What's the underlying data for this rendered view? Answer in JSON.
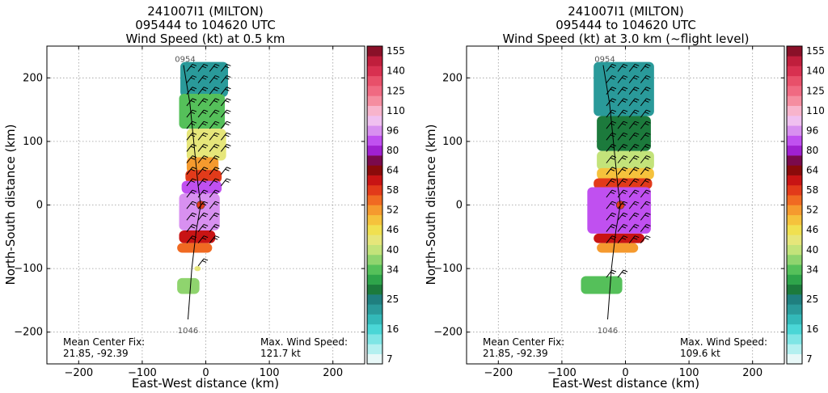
{
  "chart_data": [
    {
      "type": "radar_wind_plan_view",
      "title": [
        "241007I1 (MILTON)",
        "095444 to 104620 UTC",
        "Wind Speed (kt) at 0.5 km"
      ],
      "xlabel": "East-West distance (km)",
      "ylabel": "North-South distance (km)",
      "xlim": [
        -250,
        250
      ],
      "ylim": [
        -250,
        250
      ],
      "xticks": [
        -200,
        -100,
        0,
        100,
        200
      ],
      "yticks": [
        -200,
        -100,
        0,
        100,
        200
      ],
      "grid": true,
      "track_start_label": "0954",
      "track_end_label": "1046",
      "track": [
        [
          -35,
          220
        ],
        [
          -25,
          160
        ],
        [
          -18,
          90
        ],
        [
          -12,
          30
        ],
        [
          -8,
          0
        ],
        [
          -15,
          -40
        ],
        [
          -22,
          -100
        ],
        [
          -28,
          -180
        ]
      ],
      "center_fix_label": "Mean Center Fix:",
      "center_fix_value": "21.85, -92.39",
      "max_wind_label": "Max. Wind Speed:",
      "max_wind_value": "121.7 kt",
      "max_wind_kt": 121.7,
      "center_fix": [
        21.85,
        -92.39
      ],
      "blobs": [
        {
          "y": [
            170,
            225
          ],
          "x": [
            -40,
            35
          ],
          "kt": 22
        },
        {
          "y": [
            120,
            175
          ],
          "x": [
            -42,
            30
          ],
          "kt": 36
        },
        {
          "y": [
            70,
            120
          ],
          "x": [
            -30,
            32
          ],
          "kt": 44
        },
        {
          "y": [
            50,
            75
          ],
          "x": [
            -30,
            20
          ],
          "kt": 52
        },
        {
          "y": [
            35,
            55
          ],
          "x": [
            -32,
            25
          ],
          "kt": 60
        },
        {
          "y": [
            18,
            38
          ],
          "x": [
            -38,
            25
          ],
          "kt": 88
        },
        {
          "y": [
            -40,
            18
          ],
          "x": [
            -42,
            22
          ],
          "kt": 100
        },
        {
          "y": [
            -60,
            -40
          ],
          "x": [
            -42,
            15
          ],
          "kt": 62
        },
        {
          "y": [
            -75,
            -60
          ],
          "x": [
            -45,
            10
          ],
          "kt": 56
        },
        {
          "y": [
            -140,
            -115
          ],
          "x": [
            -45,
            -10
          ],
          "kt": 38
        },
        {
          "y": [
            -104,
            -96
          ],
          "x": [
            -18,
            -8
          ],
          "kt": 44
        }
      ]
    },
    {
      "type": "radar_wind_plan_view",
      "title": [
        "241007I1 (MILTON)",
        "095444 to 104620 UTC",
        "Wind Speed (kt) at 3.0 km (~flight level)"
      ],
      "xlabel": "East-West distance (km)",
      "ylabel": "North-South distance (km)",
      "xlim": [
        -250,
        250
      ],
      "ylim": [
        -250,
        250
      ],
      "xticks": [
        -200,
        -100,
        0,
        100,
        200
      ],
      "yticks": [
        -200,
        -100,
        0,
        100,
        200
      ],
      "grid": true,
      "track_start_label": "0954",
      "track_end_label": "1046",
      "track": [
        [
          -35,
          220
        ],
        [
          -25,
          160
        ],
        [
          -18,
          90
        ],
        [
          -12,
          30
        ],
        [
          -8,
          0
        ],
        [
          -15,
          -40
        ],
        [
          -22,
          -100
        ],
        [
          -28,
          -180
        ]
      ],
      "center_fix_label": "Mean Center Fix:",
      "center_fix_value": "21.85, -92.39",
      "max_wind_label": "Max. Wind Speed:",
      "max_wind_value": "109.6 kt",
      "max_wind_kt": 109.6,
      "center_fix": [
        21.85,
        -92.39
      ],
      "blobs": [
        {
          "y": [
            140,
            225
          ],
          "x": [
            -50,
            45
          ],
          "kt": 24
        },
        {
          "y": [
            85,
            140
          ],
          "x": [
            -45,
            40
          ],
          "kt": 30
        },
        {
          "y": [
            55,
            85
          ],
          "x": [
            -45,
            45
          ],
          "kt": 40
        },
        {
          "y": [
            40,
            58
          ],
          "x": [
            -45,
            45
          ],
          "kt": 50
        },
        {
          "y": [
            25,
            42
          ],
          "x": [
            -50,
            42
          ],
          "kt": 60
        },
        {
          "y": [
            -45,
            28
          ],
          "x": [
            -60,
            40
          ],
          "kt": 92
        },
        {
          "y": [
            -60,
            -45
          ],
          "x": [
            -50,
            30
          ],
          "kt": 62
        },
        {
          "y": [
            -75,
            -60
          ],
          "x": [
            -45,
            20
          ],
          "kt": 54
        },
        {
          "y": [
            -140,
            -112
          ],
          "x": [
            -70,
            -5
          ],
          "kt": 34
        }
      ]
    }
  ],
  "colorbar": {
    "levels": [
      7,
      10,
      13,
      16,
      19,
      22,
      25,
      28,
      31,
      34,
      37,
      40,
      43,
      46,
      49,
      52,
      55,
      58,
      61,
      64,
      72,
      80,
      88,
      96,
      103,
      110,
      118,
      125,
      133,
      140,
      148,
      155,
      163
    ],
    "labels": [
      "7",
      "16",
      "25",
      "34",
      "40",
      "46",
      "52",
      "58",
      "64",
      "80",
      "96",
      "110",
      "125",
      "140",
      "155"
    ],
    "colors": [
      "#e8f8f8",
      "#b4f0f0",
      "#7fe5e5",
      "#4ad6d6",
      "#33b8b8",
      "#2a9a9a",
      "#1f7f7f",
      "#1c7a3c",
      "#2ea44a",
      "#55c05a",
      "#8fd46e",
      "#c3e37a",
      "#e6e67a",
      "#f0e050",
      "#f5c23c",
      "#f59a2e",
      "#f06a22",
      "#e23a1a",
      "#c81414",
      "#8a0a0a",
      "#7a0a4c",
      "#a020d0",
      "#c050f0",
      "#d890f0",
      "#f0c0f0",
      "#f8b4cc",
      "#f58da0",
      "#f06a82",
      "#e8506a",
      "#d83050",
      "#c01e3c",
      "#8a1028"
    ]
  }
}
